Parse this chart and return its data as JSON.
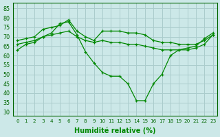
{
  "xlabel": "Humidité relative (%)",
  "background_color": "#cce8e8",
  "grid_color": "#aacccc",
  "line_color": "#008800",
  "xlim": [
    -0.5,
    23.5
  ],
  "ylim": [
    28,
    88
  ],
  "yticks": [
    30,
    35,
    40,
    45,
    50,
    55,
    60,
    65,
    70,
    75,
    80,
    85
  ],
  "xticks": [
    0,
    1,
    2,
    3,
    4,
    5,
    6,
    7,
    8,
    9,
    10,
    11,
    12,
    13,
    14,
    15,
    16,
    17,
    18,
    19,
    20,
    21,
    22,
    23
  ],
  "series": [
    {
      "x": [
        0,
        1,
        2,
        3,
        4,
        5,
        6,
        7,
        8,
        9,
        10,
        11,
        12,
        13,
        14,
        15,
        16,
        17,
        18,
        19,
        20,
        21,
        22,
        23
      ],
      "y": [
        63,
        66,
        67,
        70,
        72,
        77,
        78,
        71,
        62,
        56,
        51,
        49,
        49,
        45,
        36,
        36,
        45,
        50,
        60,
        63,
        64,
        65,
        69,
        72
      ]
    },
    {
      "x": [
        0,
        1,
        2,
        3,
        4,
        5,
        6,
        7,
        8,
        9,
        10,
        11,
        12,
        13,
        14,
        15,
        16,
        17,
        18,
        19,
        20,
        21,
        22,
        23
      ],
      "y": [
        68,
        69,
        70,
        74,
        75,
        76,
        79,
        73,
        70,
        68,
        73,
        73,
        73,
        72,
        72,
        71,
        68,
        67,
        67,
        66,
        66,
        66,
        68,
        71
      ]
    },
    {
      "x": [
        0,
        1,
        2,
        3,
        4,
        5,
        6,
        7,
        8,
        9,
        10,
        11,
        12,
        13,
        14,
        15,
        16,
        17,
        18,
        19,
        20,
        21,
        22,
        23
      ],
      "y": [
        66,
        67,
        68,
        70,
        71,
        72,
        73,
        70,
        68,
        67,
        68,
        67,
        67,
        66,
        66,
        65,
        64,
        63,
        63,
        63,
        63,
        64,
        66,
        71
      ]
    }
  ]
}
